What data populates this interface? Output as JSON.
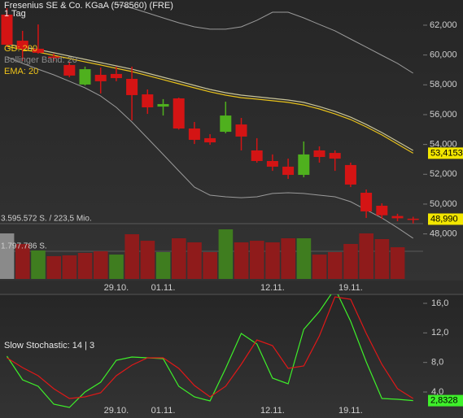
{
  "chart_data": {
    "type": "candlestick",
    "title": "Fresenius SE & Co. KGaA (578560) (FRE)",
    "subtitle": "1 Tag",
    "categories": [
      null,
      null,
      null,
      null,
      null,
      null,
      null,
      "29.10.",
      null,
      null,
      "01.11.",
      null,
      null,
      null,
      null,
      null,
      null,
      "12.11.",
      null,
      null,
      null,
      null,
      "19.11.",
      null,
      null,
      null,
      null
    ],
    "open": [
      62.71,
      60.96,
      60.42,
      59.9,
      59.33,
      58.02,
      58.67,
      58.73,
      58.4,
      57.36,
      56.54,
      57.09,
      55.07,
      54.42,
      54.85,
      55.34,
      53.6,
      52.89,
      52.51,
      51.96,
      53.6,
      53.43,
      52.62,
      50.76,
      49.89,
      49.2,
      49.02
    ],
    "high": [
      63.15,
      61.62,
      62.05,
      60.1,
      59.54,
      59.22,
      59.16,
      59.22,
      59.22,
      57.69,
      57.04,
      57.14,
      55.51,
      54.69,
      56.87,
      55.78,
      54.42,
      53.33,
      53.05,
      54.2,
      53.87,
      53.6,
      52.78,
      50.98,
      50.05,
      49.35,
      49.15
    ],
    "low": [
      60.53,
      59.6,
      60.09,
      59.6,
      58.51,
      57.95,
      57.42,
      58.24,
      55.62,
      56.05,
      55.94,
      55.0,
      54.03,
      53.98,
      54.75,
      53.6,
      52.78,
      52.23,
      51.69,
      51.8,
      52.78,
      52.23,
      51.14,
      49.07,
      49.0,
      48.85,
      48.7
    ],
    "close": [
      60.69,
      60.42,
      60.15,
      59.8,
      58.62,
      59.05,
      58.24,
      58.45,
      57.31,
      56.49,
      56.71,
      55.07,
      54.31,
      54.14,
      55.94,
      54.53,
      52.89,
      52.51,
      51.96,
      53.33,
      53.16,
      53.05,
      51.31,
      49.51,
      49.25,
      49.05,
      48.99
    ],
    "up_color": "#4fb01e",
    "down_color": "#d41414",
    "ylim": [
      44.87,
      63.69
    ],
    "yticks": [
      {
        "value": 62,
        "label": "62,000"
      },
      {
        "value": 60,
        "label": "60,000"
      },
      {
        "value": 58,
        "label": "58,000"
      },
      {
        "value": 56,
        "label": "56,000"
      },
      {
        "value": 54,
        "label": "54,000"
      },
      {
        "value": 52,
        "label": "52,000"
      },
      {
        "value": 50,
        "label": "50,000"
      },
      {
        "value": 48,
        "label": "48,000"
      }
    ],
    "overlays": [
      {
        "name": "GD: 200",
        "color": "#e8c21a",
        "values": [
          60.58,
          60.36,
          60.2,
          59.98,
          59.76,
          59.54,
          59.33,
          59.11,
          58.89,
          58.62,
          58.35,
          58.07,
          57.8,
          57.53,
          57.31,
          57.14,
          57.04,
          56.93,
          56.82,
          56.65,
          56.38,
          56.05,
          55.67,
          55.18,
          54.64,
          54.03,
          53.4153
        ]
      },
      {
        "name": "EMA: 20",
        "color": "#c9c59a",
        "values": [
          60.75,
          60.53,
          60.36,
          60.15,
          59.93,
          59.71,
          59.49,
          59.27,
          59.05,
          58.78,
          58.51,
          58.24,
          57.96,
          57.69,
          57.47,
          57.31,
          57.2,
          57.09,
          56.98,
          56.82,
          56.54,
          56.22,
          55.83,
          55.34,
          54.8,
          54.2,
          53.6
        ]
      }
    ],
    "bollinger": {
      "name": "Bollinger Band: 20",
      "color": "#9a9a9a",
      "upper": [
        null,
        null,
        null,
        null,
        null,
        null,
        null,
        63.42,
        63.15,
        62.82,
        62.49,
        62.16,
        61.89,
        61.73,
        61.73,
        61.89,
        62.33,
        62.87,
        62.87,
        62.49,
        62.05,
        61.62,
        61.07,
        60.53,
        59.98,
        59.44,
        58.78
      ],
      "lower": [
        59.87,
        59.44,
        59.05,
        58.67,
        58.24,
        57.8,
        57.25,
        56.49,
        55.51,
        54.42,
        53.33,
        52.23,
        51.14,
        50.6,
        50.49,
        50.43,
        50.49,
        50.71,
        50.76,
        50.71,
        50.6,
        50.49,
        50.16,
        49.61,
        49.07,
        48.41,
        47.71
      ]
    },
    "last_labels": [
      {
        "value": 53.4153,
        "label": "53,4153",
        "color": "#f2e600"
      },
      {
        "value": 48.99,
        "label": "48,990",
        "color": "#f2e600"
      }
    ],
    "volume": {
      "ylim": [
        0,
        3595572
      ],
      "yticks": [
        {
          "value": 3595572,
          "label": "3.595.572 S. / 223,5 Mio."
        },
        {
          "value": 1797786,
          "label": "1.797.786 S."
        }
      ],
      "values": [
        2961000,
        2274000,
        1851000,
        1481000,
        1533000,
        1692000,
        1798000,
        1586000,
        2908000,
        2485000,
        1745000,
        2644000,
        2379000,
        1745000,
        3225000,
        2379000,
        2485000,
        2379000,
        2644000,
        2644000,
        1586000,
        1745000,
        2274000,
        2961000,
        2591000,
        2062000,
        null
      ],
      "colors": [
        "#8a8a8a",
        "#8f1b1b",
        "#3f7d1f",
        "#8f1b1b",
        "#8f1b1b",
        "#8f1b1b",
        "#8f1b1b",
        "#3f7d1f",
        "#8f1b1b",
        "#8f1b1b",
        "#3f7d1f",
        "#8f1b1b",
        "#8f1b1b",
        "#8f1b1b",
        "#3f7d1f",
        "#8f1b1b",
        "#8f1b1b",
        "#8f1b1b",
        "#8f1b1b",
        "#3f7d1f",
        "#8f1b1b",
        "#8f1b1b",
        "#8f1b1b",
        "#8f1b1b",
        "#8f1b1b",
        "#8f1b1b",
        "#8f1b1b"
      ]
    },
    "stochastic": {
      "type": "line",
      "label": "Slow Stochastic: 14 | 3",
      "ylim": [
        0.48,
        17.21
      ],
      "yticks": [
        {
          "value": 16,
          "label": "16,0"
        },
        {
          "value": 12,
          "label": "12,0"
        },
        {
          "value": 8,
          "label": "8,0"
        },
        {
          "value": 4,
          "label": "4,0"
        }
      ],
      "series": [
        {
          "color": "#3ef02a",
          "values": [
            8.84,
            5.65,
            4.77,
            2.35,
            1.91,
            4.0,
            5.32,
            8.29,
            8.73,
            8.62,
            8.51,
            4.77,
            3.34,
            2.79,
            7.19,
            11.93,
            10.5,
            5.87,
            5.1,
            12.48,
            14.9,
            18.0,
            13.58,
            8.07,
            3.12,
            3.01,
            2.8328
          ]
        },
        {
          "color": "#e01818",
          "values": [
            8.62,
            7.3,
            6.2,
            4.44,
            3.12,
            3.34,
            3.89,
            6.2,
            7.63,
            8.62,
            8.62,
            7.19,
            4.88,
            3.34,
            4.77,
            7.74,
            11.05,
            10.28,
            7.19,
            7.52,
            11.6,
            16.88,
            16.55,
            11.93,
            7.74,
            4.44,
            3.12
          ]
        }
      ],
      "last_label": {
        "value": 2.8328,
        "label": "2,8328",
        "color": "#3ef02a"
      }
    }
  }
}
